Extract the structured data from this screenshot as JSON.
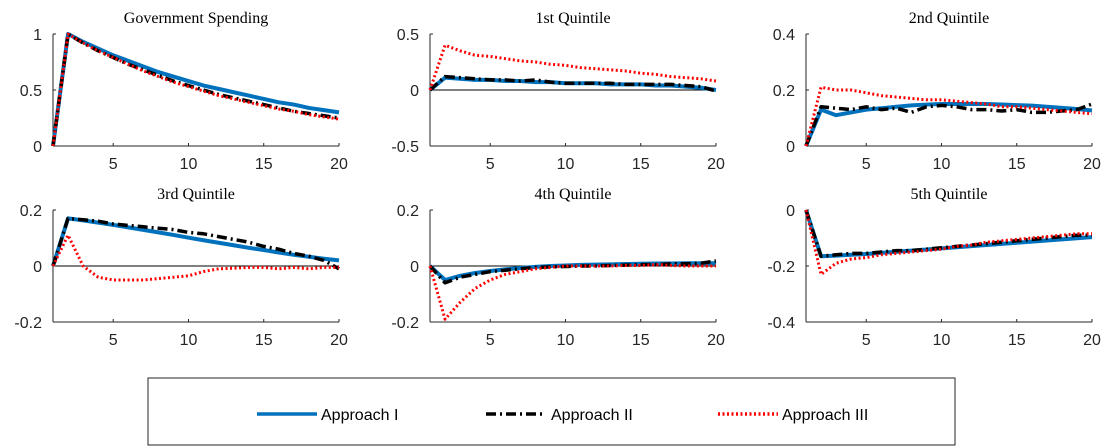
{
  "legend": {
    "items": [
      {
        "label": "Approach I",
        "color": "#0072BD",
        "style": "solid"
      },
      {
        "label": "Approach II",
        "color": "#000000",
        "style": "dashdot"
      },
      {
        "label": "Approach III",
        "color": "#FF0000",
        "style": "dotted"
      }
    ]
  },
  "chart_data": [
    {
      "type": "line",
      "title": "Government Spending",
      "xlim": [
        1,
        20
      ],
      "ylim": [
        0,
        1
      ],
      "xticks": [
        5,
        10,
        15,
        20
      ],
      "yticks": [
        0,
        0.5,
        1
      ],
      "ytick_labels": [
        "0",
        "0.5",
        "1"
      ],
      "x": [
        1,
        2,
        3,
        4,
        5,
        6,
        7,
        8,
        9,
        10,
        11,
        12,
        13,
        14,
        15,
        16,
        17,
        18,
        19,
        20
      ],
      "series": [
        {
          "name": "Approach I",
          "values": [
            0,
            1.0,
            0.93,
            0.87,
            0.81,
            0.76,
            0.71,
            0.66,
            0.62,
            0.58,
            0.54,
            0.51,
            0.48,
            0.45,
            0.42,
            0.39,
            0.37,
            0.34,
            0.32,
            0.3
          ]
        },
        {
          "name": "Approach II",
          "values": [
            0,
            1.0,
            0.92,
            0.85,
            0.79,
            0.73,
            0.68,
            0.63,
            0.58,
            0.54,
            0.5,
            0.46,
            0.43,
            0.4,
            0.37,
            0.34,
            0.31,
            0.29,
            0.27,
            0.25
          ]
        },
        {
          "name": "Approach III",
          "values": [
            0,
            1.0,
            0.92,
            0.85,
            0.79,
            0.73,
            0.67,
            0.62,
            0.57,
            0.53,
            0.49,
            0.45,
            0.42,
            0.39,
            0.36,
            0.33,
            0.31,
            0.28,
            0.26,
            0.24
          ]
        }
      ]
    },
    {
      "type": "line",
      "title": "1st Quintile",
      "xlim": [
        1,
        20
      ],
      "ylim": [
        -0.5,
        0.5
      ],
      "xticks": [
        5,
        10,
        15,
        20
      ],
      "yticks": [
        -0.5,
        0,
        0.5
      ],
      "ytick_labels": [
        "-0.5",
        "0",
        "0.5"
      ],
      "zero_line": true,
      "x": [
        1,
        2,
        3,
        4,
        5,
        6,
        7,
        8,
        9,
        10,
        11,
        12,
        13,
        14,
        15,
        16,
        17,
        18,
        19,
        20
      ],
      "series": [
        {
          "name": "Approach I",
          "values": [
            0,
            0.11,
            0.1,
            0.09,
            0.09,
            0.08,
            0.08,
            0.07,
            0.07,
            0.06,
            0.06,
            0.06,
            0.05,
            0.05,
            0.05,
            0.04,
            0.04,
            0.03,
            0.02,
            0.0
          ]
        },
        {
          "name": "Approach II",
          "values": [
            0,
            0.12,
            0.11,
            0.1,
            0.09,
            0.09,
            0.08,
            0.09,
            0.07,
            0.06,
            0.06,
            0.06,
            0.06,
            0.05,
            0.05,
            0.05,
            0.05,
            0.04,
            0.03,
            -0.01
          ]
        },
        {
          "name": "Approach III",
          "values": [
            0,
            0.4,
            0.35,
            0.31,
            0.3,
            0.28,
            0.26,
            0.25,
            0.23,
            0.22,
            0.2,
            0.19,
            0.18,
            0.17,
            0.15,
            0.14,
            0.12,
            0.11,
            0.1,
            0.08
          ]
        }
      ]
    },
    {
      "type": "line",
      "title": "2nd Quintile",
      "xlim": [
        1,
        20
      ],
      "ylim": [
        0,
        0.4
      ],
      "xticks": [
        5,
        10,
        15,
        20
      ],
      "yticks": [
        0,
        0.2,
        0.4
      ],
      "ytick_labels": [
        "0",
        "0.2",
        "0.4"
      ],
      "x": [
        1,
        2,
        3,
        4,
        5,
        6,
        7,
        8,
        9,
        10,
        11,
        12,
        13,
        14,
        15,
        16,
        17,
        18,
        19,
        20
      ],
      "series": [
        {
          "name": "Approach I",
          "values": [
            0,
            0.13,
            0.11,
            0.12,
            0.13,
            0.135,
            0.14,
            0.145,
            0.148,
            0.15,
            0.15,
            0.15,
            0.15,
            0.148,
            0.146,
            0.144,
            0.14,
            0.136,
            0.132,
            0.127
          ]
        },
        {
          "name": "Approach II",
          "values": [
            0,
            0.14,
            0.135,
            0.13,
            0.14,
            0.13,
            0.135,
            0.12,
            0.14,
            0.145,
            0.14,
            0.13,
            0.13,
            0.125,
            0.13,
            0.12,
            0.12,
            0.125,
            0.13,
            0.15
          ]
        },
        {
          "name": "Approach III",
          "values": [
            0,
            0.21,
            0.2,
            0.2,
            0.19,
            0.18,
            0.175,
            0.17,
            0.165,
            0.165,
            0.16,
            0.155,
            0.15,
            0.14,
            0.14,
            0.135,
            0.13,
            0.125,
            0.12,
            0.115
          ]
        }
      ]
    },
    {
      "type": "line",
      "title": "3rd Quintile",
      "xlim": [
        1,
        20
      ],
      "ylim": [
        -0.2,
        0.2
      ],
      "xticks": [
        5,
        10,
        15,
        20
      ],
      "yticks": [
        -0.2,
        0,
        0.2
      ],
      "ytick_labels": [
        "-0.2",
        "0",
        "0.2"
      ],
      "zero_line": true,
      "x": [
        1,
        2,
        3,
        4,
        5,
        6,
        7,
        8,
        9,
        10,
        11,
        12,
        13,
        14,
        15,
        16,
        17,
        18,
        19,
        20
      ],
      "series": [
        {
          "name": "Approach I",
          "values": [
            0,
            0.17,
            0.163,
            0.155,
            0.147,
            0.138,
            0.129,
            0.12,
            0.111,
            0.101,
            0.092,
            0.083,
            0.074,
            0.065,
            0.057,
            0.048,
            0.04,
            0.033,
            0.026,
            0.02
          ]
        },
        {
          "name": "Approach II",
          "values": [
            0,
            0.17,
            0.165,
            0.16,
            0.15,
            0.145,
            0.14,
            0.135,
            0.13,
            0.12,
            0.115,
            0.105,
            0.095,
            0.085,
            0.07,
            0.06,
            0.045,
            0.035,
            0.02,
            -0.01
          ]
        },
        {
          "name": "Approach III",
          "values": [
            0,
            0.11,
            0.0,
            -0.04,
            -0.05,
            -0.05,
            -0.05,
            -0.045,
            -0.04,
            -0.035,
            -0.02,
            -0.01,
            -0.008,
            -0.005,
            -0.005,
            -0.01,
            -0.005,
            -0.01,
            -0.005,
            -0.005
          ]
        }
      ]
    },
    {
      "type": "line",
      "title": "4th Quintile",
      "xlim": [
        1,
        20
      ],
      "ylim": [
        -0.2,
        0.2
      ],
      "xticks": [
        5,
        10,
        15,
        20
      ],
      "yticks": [
        -0.2,
        0,
        0.2
      ],
      "ytick_labels": [
        "-0.2",
        "0",
        "0.2"
      ],
      "zero_line": true,
      "x": [
        1,
        2,
        3,
        4,
        5,
        6,
        7,
        8,
        9,
        10,
        11,
        12,
        13,
        14,
        15,
        16,
        17,
        18,
        19,
        20
      ],
      "series": [
        {
          "name": "Approach I",
          "values": [
            0,
            -0.05,
            -0.035,
            -0.025,
            -0.018,
            -0.012,
            -0.007,
            -0.003,
            0.0,
            0.002,
            0.004,
            0.005,
            0.006,
            0.007,
            0.008,
            0.009,
            0.009,
            0.01,
            0.01,
            0.01
          ]
        },
        {
          "name": "Approach II",
          "values": [
            0,
            -0.06,
            -0.04,
            -0.03,
            -0.02,
            -0.015,
            -0.01,
            -0.005,
            -0.003,
            -0.002,
            0.0,
            0.0,
            0.002,
            0.003,
            0.005,
            0.005,
            0.008,
            0.008,
            0.01,
            0.018
          ]
        },
        {
          "name": "Approach III",
          "values": [
            0,
            -0.19,
            -0.13,
            -0.08,
            -0.05,
            -0.03,
            -0.02,
            -0.01,
            -0.005,
            0.0,
            0.0,
            0.0,
            0.0,
            0.002,
            0.002,
            0.005,
            0.002,
            0.0,
            0.0,
            0.0
          ]
        }
      ]
    },
    {
      "type": "line",
      "title": "5th Quintile",
      "xlim": [
        1,
        20
      ],
      "ylim": [
        -0.4,
        0
      ],
      "xticks": [
        5,
        10,
        15,
        20
      ],
      "yticks": [
        -0.4,
        -0.2,
        0
      ],
      "ytick_labels": [
        "-0.4",
        "-0.2",
        "0"
      ],
      "x": [
        1,
        2,
        3,
        4,
        5,
        6,
        7,
        8,
        9,
        10,
        11,
        12,
        13,
        14,
        15,
        16,
        17,
        18,
        19,
        20
      ],
      "series": [
        {
          "name": "Approach I",
          "values": [
            0,
            -0.165,
            -0.163,
            -0.16,
            -0.157,
            -0.153,
            -0.149,
            -0.145,
            -0.141,
            -0.137,
            -0.133,
            -0.129,
            -0.125,
            -0.121,
            -0.117,
            -0.113,
            -0.109,
            -0.105,
            -0.101,
            -0.097
          ]
        },
        {
          "name": "Approach II",
          "values": [
            0,
            -0.165,
            -0.16,
            -0.155,
            -0.155,
            -0.15,
            -0.145,
            -0.145,
            -0.14,
            -0.135,
            -0.13,
            -0.125,
            -0.12,
            -0.115,
            -0.11,
            -0.105,
            -0.1,
            -0.095,
            -0.09,
            -0.09
          ]
        },
        {
          "name": "Approach III",
          "values": [
            0,
            -0.23,
            -0.19,
            -0.175,
            -0.17,
            -0.16,
            -0.155,
            -0.15,
            -0.145,
            -0.14,
            -0.13,
            -0.125,
            -0.115,
            -0.11,
            -0.105,
            -0.1,
            -0.095,
            -0.09,
            -0.085,
            -0.085
          ]
        }
      ]
    }
  ]
}
